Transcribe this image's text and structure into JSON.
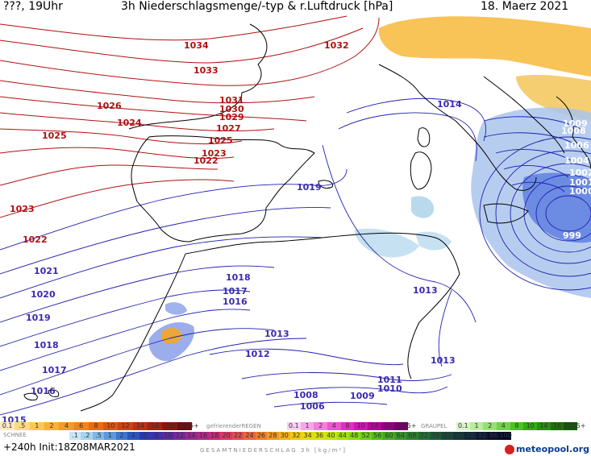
{
  "header": {
    "left": "???, 19Uhr",
    "title": "3h Niederschlagsmenge/-typ & r.Luftdruck [hPa]",
    "date": "18. Maerz 2021"
  },
  "isobars": {
    "red": [
      "1034",
      "1033",
      "1032",
      "1031",
      "1030",
      "1029",
      "1027",
      "1026",
      "1025",
      "1025",
      "1024",
      "1023",
      "1023",
      "1022",
      "1022"
    ],
    "blue": [
      "1021",
      "1020",
      "1019",
      "1019",
      "1018",
      "1018",
      "1017",
      "1017",
      "1016",
      "1016",
      "1015",
      "1014",
      "1013",
      "1013",
      "1013",
      "1012",
      "1011",
      "1010",
      "1009",
      "1009",
      "1008",
      "1008",
      "1006",
      "1006",
      "1004",
      "1002",
      "1001",
      "1000",
      "999"
    ]
  },
  "legend": {
    "snow_label": "SCHNEE",
    "freezing_rain_label": "gefrierenderREGEN",
    "graupel_label": "GRAUPEL",
    "snow_scale": [
      "0.1",
      ".5",
      "1",
      "2",
      "4",
      "6",
      "8",
      "10",
      "12",
      "14",
      "16",
      "18",
      "2025+"
    ],
    "freezing_scale": [
      "0.1",
      "1",
      "2",
      "4",
      "8",
      "10",
      "14",
      "16",
      "2025+"
    ],
    "graupel_scale": [
      "0.1",
      "1",
      "2",
      "4",
      "8",
      "10",
      "14",
      "16",
      "2025+"
    ],
    "total_scale": [
      ".1",
      ".2",
      ".5",
      "1",
      "2",
      "4",
      "6",
      "8",
      "10",
      "12",
      "14",
      "16",
      "18",
      "20",
      "22",
      "24",
      "26",
      "28",
      "30",
      "32",
      "34",
      "36",
      "40",
      "44",
      "48",
      "52",
      "56",
      "60",
      "64",
      "68",
      "72",
      "76",
      "80",
      "84",
      "88",
      "92",
      "96",
      "100"
    ],
    "caption": "GESAMTNIEDERSCHLAG 3h [kg/m²]"
  },
  "footer": {
    "run": "+240h Init:18Z08MAR2021",
    "brand": "meteopool.org"
  },
  "colors": {
    "high_isobar": "#b01010",
    "low_isobar": "#2020b0",
    "coast": "#000000",
    "snow_orange": "#f5a623",
    "rain_blue": "#7fa6e0"
  }
}
